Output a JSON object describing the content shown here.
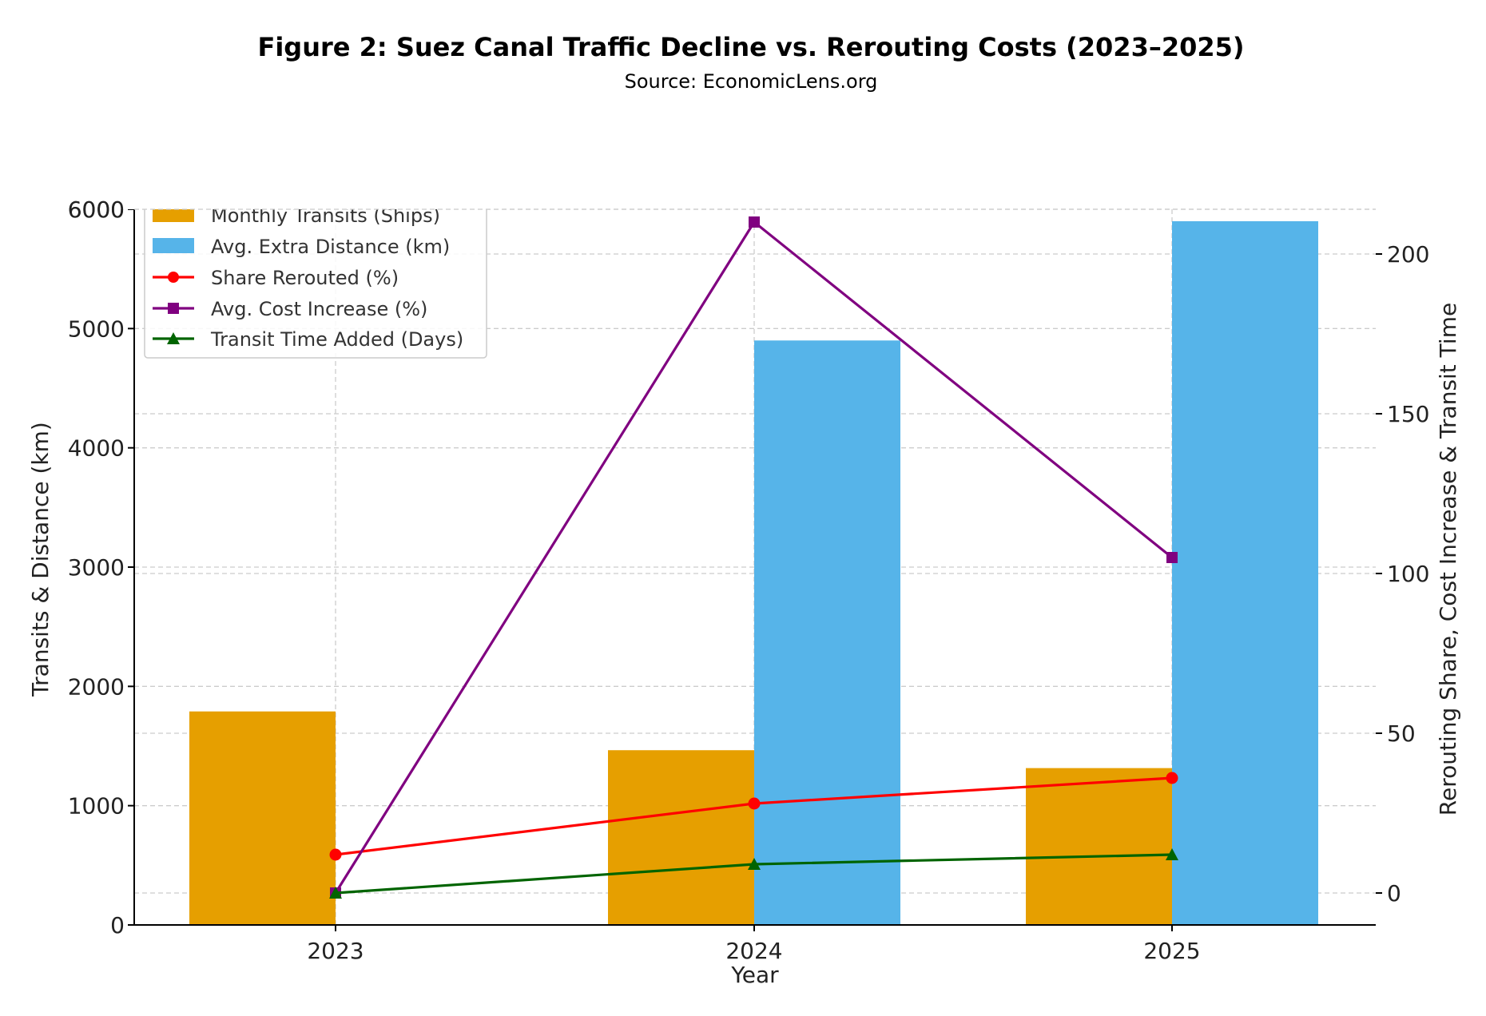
{
  "chart_data": {
    "type": "bar",
    "title": "Figure 2: Suez Canal Traffic Decline vs. Rerouting Costs (2023–2025)",
    "subtitle": "Source: EconomicLens.org",
    "xlabel": "Year",
    "ylabel": "Transits & Distance (km)",
    "y2label": "Rerouting Share, Cost Increase & Transit Time",
    "categories": [
      "2023",
      "2024",
      "2025"
    ],
    "ylim": [
      0,
      6000
    ],
    "y2lim": [
      -10,
      214
    ],
    "yticks": [
      "0",
      "1000",
      "2000",
      "3000",
      "4000",
      "5000",
      "6000"
    ],
    "y2ticks": [
      "0",
      "50",
      "100",
      "150",
      "200"
    ],
    "grid": true,
    "legend_position": "top-left",
    "bar_series": [
      {
        "name": "Monthly Transits (Ships)",
        "color": "#E69F00",
        "values": [
          1790,
          1465,
          1315
        ]
      },
      {
        "name": "Avg. Extra Distance (km)",
        "color": "#56B4E9",
        "values": [
          0,
          4900,
          5900
        ]
      }
    ],
    "line_series": [
      {
        "name": "Share Rerouted (%)",
        "color": "#FF0000",
        "marker": "circle",
        "values": [
          12,
          28,
          36
        ]
      },
      {
        "name": "Avg. Cost Increase (%)",
        "color": "#800080",
        "marker": "square",
        "values": [
          0,
          210,
          105
        ]
      },
      {
        "name": "Transit Time Added (Days)",
        "color": "#006400",
        "marker": "triangle",
        "values": [
          0,
          9,
          12
        ]
      }
    ]
  }
}
